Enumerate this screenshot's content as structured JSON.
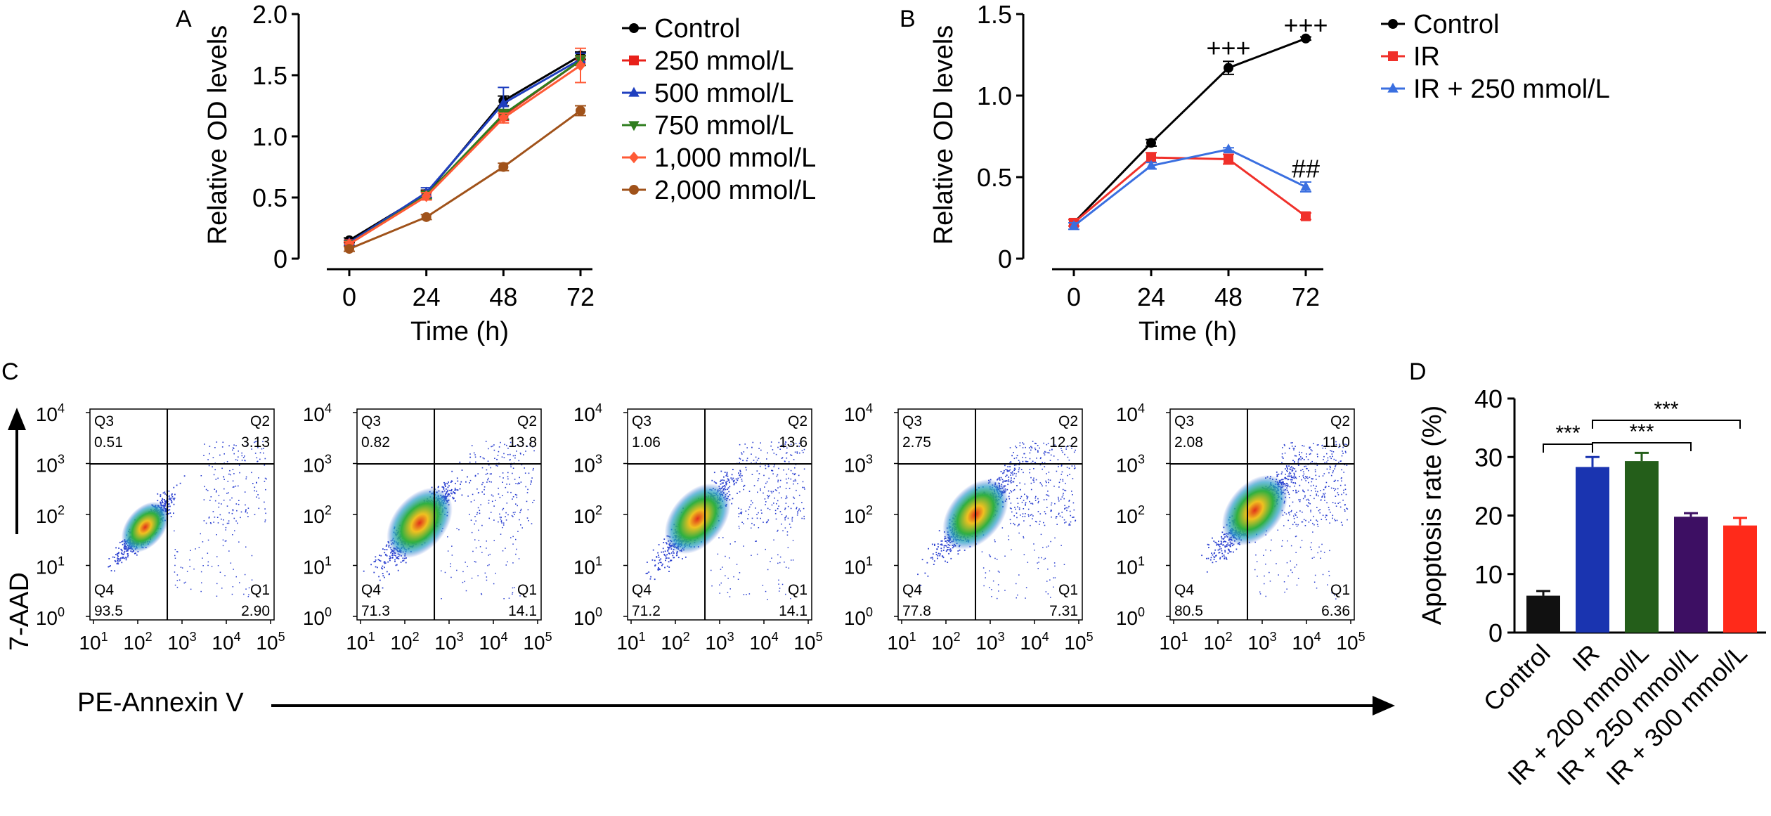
{
  "panels": {
    "A": "A",
    "B": "B",
    "C": "C",
    "D": "D"
  },
  "chart_data": [
    {
      "panel": "A",
      "type": "line",
      "xlabel": "Time (h)",
      "ylabel": "Relative OD levels",
      "x": [
        0,
        24,
        48,
        72
      ],
      "xticks": [
        "0",
        "24",
        "48",
        "72"
      ],
      "yticks": [
        "0",
        "0.5",
        "1.0",
        "1.5",
        "2.0"
      ],
      "ylim": [
        0,
        2.0
      ],
      "grid": false,
      "legend_position": "top-right",
      "series": [
        {
          "name": "Control",
          "color": "#000000",
          "marker": "circle",
          "values": [
            0.15,
            0.53,
            1.29,
            1.66
          ],
          "errors": [
            0.02,
            0.03,
            0.04,
            0.03
          ]
        },
        {
          "name": "250 mmol/L",
          "color": "#e8201a",
          "marker": "square",
          "values": [
            0.12,
            0.52,
            1.17,
            1.62
          ],
          "errors": [
            0.02,
            0.03,
            0.04,
            0.04
          ]
        },
        {
          "name": "500 mmol/L",
          "color": "#1f3fbf",
          "marker": "triangle-up",
          "values": [
            0.13,
            0.54,
            1.27,
            1.63
          ],
          "errors": [
            0.02,
            0.04,
            0.13,
            0.05
          ]
        },
        {
          "name": "750 mmol/L",
          "color": "#2e7d1e",
          "marker": "triangle-down",
          "values": [
            0.12,
            0.52,
            1.18,
            1.62
          ],
          "errors": [
            0.02,
            0.03,
            0.04,
            0.04
          ]
        },
        {
          "name": "1,000 mmol/L",
          "color": "#ff5a36",
          "marker": "diamond",
          "values": [
            0.12,
            0.51,
            1.15,
            1.58
          ],
          "errors": [
            0.02,
            0.03,
            0.04,
            0.14
          ]
        },
        {
          "name": "2,000 mmol/L",
          "color": "#a0521a",
          "marker": "circle",
          "values": [
            0.08,
            0.34,
            0.75,
            1.21
          ],
          "errors": [
            0.02,
            0.02,
            0.03,
            0.04
          ]
        }
      ]
    },
    {
      "panel": "B",
      "type": "line",
      "xlabel": "Time (h)",
      "ylabel": "Relative OD levels",
      "x": [
        0,
        24,
        48,
        72
      ],
      "xticks": [
        "0",
        "24",
        "48",
        "72"
      ],
      "yticks": [
        "0",
        "0.5",
        "1.0",
        "1.5"
      ],
      "ylim": [
        0,
        1.5
      ],
      "grid": false,
      "legend_position": "top-right",
      "series": [
        {
          "name": "Control",
          "color": "#000000",
          "marker": "circle",
          "values": [
            0.22,
            0.71,
            1.17,
            1.35
          ],
          "errors": [
            0.02,
            0.02,
            0.04,
            0.01
          ]
        },
        {
          "name": "IR",
          "color": "#f0302a",
          "marker": "square",
          "values": [
            0.22,
            0.62,
            0.61,
            0.26
          ],
          "errors": [
            0.02,
            0.03,
            0.03,
            0.02
          ]
        },
        {
          "name": "IR + 250 mmol/L",
          "color": "#3a6fe0",
          "marker": "triangle-up",
          "values": [
            0.2,
            0.57,
            0.67,
            0.44
          ],
          "errors": [
            0.02,
            0.02,
            0.01,
            0.03
          ]
        }
      ],
      "annotations": [
        {
          "text": "+++",
          "x": 48,
          "y": 1.29
        },
        {
          "text": "+++",
          "x": 72,
          "y": 1.43
        },
        {
          "text": "##",
          "x": 72,
          "y": 0.55
        }
      ]
    },
    {
      "panel": "C",
      "type": "scatter",
      "xlabel": "PE-Annexin V",
      "ylabel": "7-AAD",
      "xticks": [
        "10",
        "10",
        "10",
        "10",
        "10"
      ],
      "xtick_exponents": [
        "1",
        "2",
        "3",
        "4",
        "5"
      ],
      "yticks": [
        "10",
        "10",
        "10",
        "10",
        "10"
      ],
      "ytick_exponents": [
        "0",
        "1",
        "2",
        "3",
        "4"
      ],
      "quadrant_names": [
        "Q3",
        "Q2",
        "Q4",
        "Q1"
      ],
      "plots": [
        {
          "Q3": "0.51",
          "Q2": "3.13",
          "Q4": "93.5",
          "Q1": "2.90"
        },
        {
          "Q3": "0.82",
          "Q2": "13.8",
          "Q4": "71.3",
          "Q1": "14.1"
        },
        {
          "Q3": "1.06",
          "Q2": "13.6",
          "Q4": "71.2",
          "Q1": "14.1"
        },
        {
          "Q3": "2.75",
          "Q2": "12.2",
          "Q4": "77.8",
          "Q1": "7.31"
        },
        {
          "Q3": "2.08",
          "Q2": "11.0",
          "Q4": "80.5",
          "Q1": "6.36"
        }
      ]
    },
    {
      "panel": "D",
      "type": "bar",
      "ylabel": "Apoptosis rate (%)",
      "categories": [
        "Control",
        "IR",
        "IR + 200 mmol/L",
        "IR + 250 mmol/L",
        "IR + 300 mmol/L"
      ],
      "values": [
        6.3,
        28.3,
        29.3,
        19.8,
        18.3
      ],
      "errors": [
        0.8,
        1.7,
        1.4,
        0.6,
        1.3
      ],
      "colors": [
        "#111111",
        "#1a34b0",
        "#245e1a",
        "#3d0f63",
        "#ff2a1a"
      ],
      "yticks": [
        "0",
        "10",
        "20",
        "30",
        "40"
      ],
      "ylim": [
        0,
        40
      ],
      "grid": false,
      "significance": [
        {
          "from": 0,
          "to": 1,
          "text": "***"
        },
        {
          "from": 1,
          "to": 3,
          "text": "***"
        },
        {
          "from": 1,
          "to": 4,
          "text": "***"
        }
      ]
    }
  ]
}
